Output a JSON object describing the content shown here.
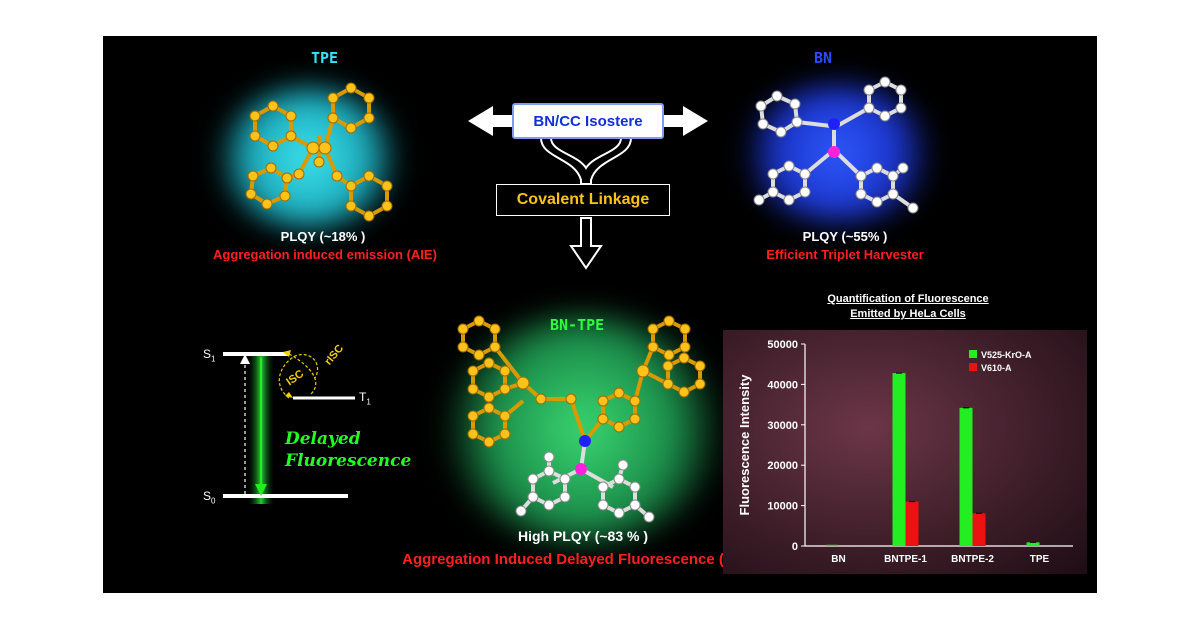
{
  "tpe": {
    "title": "TPE",
    "plqy": "PLQY  (~18% )",
    "property": "Aggregation  induced  emission (AIE)"
  },
  "bn": {
    "title": "BN",
    "plqy": "PLQY  (~55% )",
    "property": "Efficient Triplet Harvester"
  },
  "center": {
    "isostere_label": "BN/CC Isostere",
    "linkage_label": "Covalent Linkage"
  },
  "bntpe": {
    "title": "BN-TPE",
    "plqy": "High PLQY  (~83 % )",
    "property": "Aggregation Induced Delayed Fluorescence (AIDF)"
  },
  "jablonski": {
    "s1": "S1",
    "s0": "S0",
    "t1": "T1",
    "isc": "ISC",
    "risc": "rISC",
    "delayed_line1": "Delayed",
    "delayed_line2": "Fluorescence"
  },
  "colors": {
    "green": "#22ee22",
    "red": "#ee1111",
    "gold": "#f0b418",
    "cyan": "#2ee6ff",
    "blue": "#2a4bff"
  },
  "chart_data": {
    "type": "bar",
    "title": "Quantification of Fluorescence Emitted by HeLa Cells",
    "title_lines": [
      "Quantification of Fluorescence",
      "Emitted by HeLa Cells"
    ],
    "categories": [
      "BN",
      "BNTPE-1",
      "BNTPE-2",
      "TPE"
    ],
    "series": [
      {
        "name": "V525-KrO-A",
        "color": "#22ee22",
        "values": [
          300,
          42800,
          34200,
          900
        ]
      },
      {
        "name": "V610-A",
        "color": "#ee1111",
        "values": [
          0,
          11000,
          8100,
          0
        ]
      }
    ],
    "ylabel": "Fluorescence Intensity",
    "xlabel": "",
    "ylim": [
      0,
      50000
    ],
    "yticks": [
      0,
      10000,
      20000,
      30000,
      40000,
      50000
    ],
    "legend_position": "top-right",
    "grid": false
  }
}
